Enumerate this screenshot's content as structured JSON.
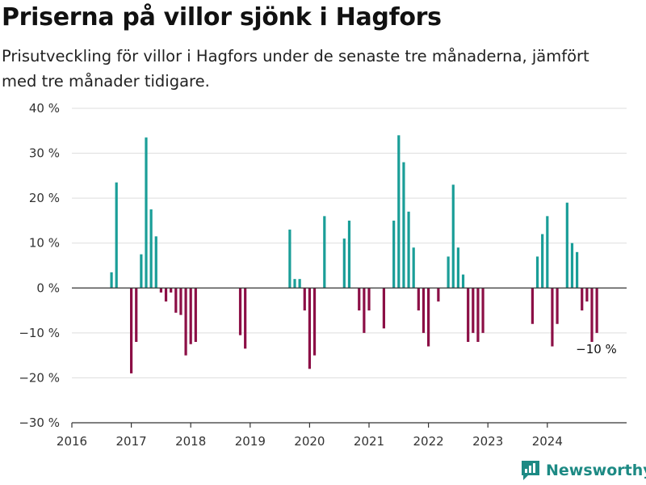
{
  "title": "Priserna på villor sjönk i Hagfors",
  "subtitle": "Prisutveckling för villor i Hagfors under de senaste tre månaderna, jämfört med tre månader tidigare.",
  "brand": {
    "name": "Newsworthy",
    "icon": "newsworthy-logo-icon"
  },
  "colors": {
    "positive": "#1a9e98",
    "negative": "#8c0f46",
    "zero_line": "#333333",
    "grid": "#dddddd"
  },
  "chart_data": {
    "type": "bar",
    "title": "Priserna på villor sjönk i Hagfors",
    "subtitle": "Prisutveckling för villor i Hagfors under de senaste tre månaderna, jämfört med tre månader tidigare.",
    "xlabel": "",
    "ylabel": "",
    "x_unit": "month",
    "xlim": [
      "2016-01",
      "2025-03"
    ],
    "ylim": [
      -30,
      40
    ],
    "y_ticks": [
      -30,
      -20,
      -10,
      0,
      10,
      20,
      30,
      40
    ],
    "y_tick_labels": [
      "−30 %",
      "−20 %",
      "−10 %",
      "0 %",
      "10 %",
      "20 %",
      "30 %",
      "40 %"
    ],
    "x_ticks": [
      "2016-01",
      "2017-01",
      "2018-01",
      "2019-01",
      "2020-01",
      "2021-01",
      "2022-01",
      "2023-01",
      "2024-01"
    ],
    "x_tick_labels": [
      "2016",
      "2017",
      "2018",
      "2019",
      "2020",
      "2021",
      "2022",
      "2023",
      "2024"
    ],
    "grid": true,
    "legend": "none",
    "end_label": "−10 %",
    "data": [
      {
        "x": "2016-09",
        "y": 3.5
      },
      {
        "x": "2016-10",
        "y": 23.5
      },
      {
        "x": "2017-01",
        "y": -19
      },
      {
        "x": "2017-02",
        "y": -12
      },
      {
        "x": "2017-03",
        "y": 7.5
      },
      {
        "x": "2017-04",
        "y": 33.5
      },
      {
        "x": "2017-05",
        "y": 17.5
      },
      {
        "x": "2017-06",
        "y": 11.5
      },
      {
        "x": "2017-07",
        "y": -1
      },
      {
        "x": "2017-08",
        "y": -3
      },
      {
        "x": "2017-09",
        "y": -1
      },
      {
        "x": "2017-10",
        "y": -5.5
      },
      {
        "x": "2017-11",
        "y": -6
      },
      {
        "x": "2017-12",
        "y": -15
      },
      {
        "x": "2018-01",
        "y": -12.5
      },
      {
        "x": "2018-02",
        "y": -12
      },
      {
        "x": "2018-11",
        "y": -10.5
      },
      {
        "x": "2018-12",
        "y": -13.5
      },
      {
        "x": "2019-09",
        "y": 13
      },
      {
        "x": "2019-10",
        "y": 2
      },
      {
        "x": "2019-11",
        "y": 2
      },
      {
        "x": "2019-12",
        "y": -5
      },
      {
        "x": "2020-01",
        "y": -18
      },
      {
        "x": "2020-02",
        "y": -15
      },
      {
        "x": "2020-04",
        "y": 16
      },
      {
        "x": "2020-08",
        "y": 11
      },
      {
        "x": "2020-09",
        "y": 15
      },
      {
        "x": "2020-11",
        "y": -5
      },
      {
        "x": "2020-12",
        "y": -10
      },
      {
        "x": "2021-01",
        "y": -5
      },
      {
        "x": "2021-04",
        "y": -9
      },
      {
        "x": "2021-06",
        "y": 15
      },
      {
        "x": "2021-07",
        "y": 34
      },
      {
        "x": "2021-08",
        "y": 28
      },
      {
        "x": "2021-09",
        "y": 17
      },
      {
        "x": "2021-10",
        "y": 9
      },
      {
        "x": "2021-11",
        "y": -5
      },
      {
        "x": "2021-12",
        "y": -10
      },
      {
        "x": "2022-01",
        "y": -13
      },
      {
        "x": "2022-03",
        "y": -3
      },
      {
        "x": "2022-05",
        "y": 7
      },
      {
        "x": "2022-06",
        "y": 23
      },
      {
        "x": "2022-07",
        "y": 9
      },
      {
        "x": "2022-08",
        "y": 3
      },
      {
        "x": "2022-09",
        "y": -12
      },
      {
        "x": "2022-10",
        "y": -10
      },
      {
        "x": "2022-11",
        "y": -12
      },
      {
        "x": "2022-12",
        "y": -10
      },
      {
        "x": "2023-10",
        "y": -8
      },
      {
        "x": "2023-11",
        "y": 7
      },
      {
        "x": "2023-12",
        "y": 12
      },
      {
        "x": "2024-01",
        "y": 16
      },
      {
        "x": "2024-02",
        "y": -13
      },
      {
        "x": "2024-03",
        "y": -8
      },
      {
        "x": "2024-05",
        "y": 19
      },
      {
        "x": "2024-06",
        "y": 10
      },
      {
        "x": "2024-07",
        "y": 8
      },
      {
        "x": "2024-08",
        "y": -5
      },
      {
        "x": "2024-09",
        "y": -3
      },
      {
        "x": "2024-10",
        "y": -12
      },
      {
        "x": "2024-11",
        "y": -10
      }
    ]
  }
}
